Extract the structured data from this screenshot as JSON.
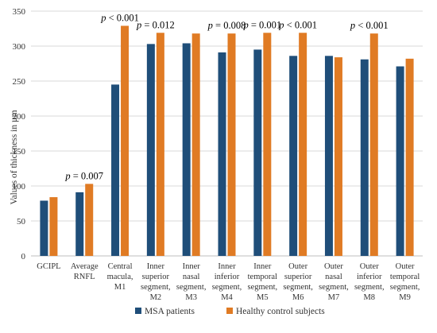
{
  "chart_data": {
    "type": "bar",
    "title": "",
    "xlabel": "",
    "ylabel": "Values of thickness in µm",
    "ylim": [
      0,
      350
    ],
    "yticks": [
      0,
      50,
      100,
      150,
      200,
      250,
      300,
      350
    ],
    "grid": true,
    "legend_position": "bottom",
    "categories": [
      [
        "GCIPL"
      ],
      [
        "Average",
        "RNFL"
      ],
      [
        "Central",
        "macula,",
        "M1"
      ],
      [
        "Inner",
        "superior",
        "segment,",
        "M2"
      ],
      [
        "Inner",
        "nasal",
        "segment,",
        "M3"
      ],
      [
        "Inner",
        "inferior",
        "segment,",
        "M4"
      ],
      [
        "Inner",
        "temporal",
        "segment,",
        "M5"
      ],
      [
        "Outer",
        "superior",
        "segment,",
        "M6"
      ],
      [
        "Outer",
        "nasal",
        "segment,",
        "M7"
      ],
      [
        "Outer",
        "inferior",
        "segment,",
        "M8"
      ],
      [
        "Outer",
        "temporal",
        "segment,",
        "M9"
      ]
    ],
    "series": [
      {
        "name": "MSA patients",
        "color": "#1f4e79",
        "values": [
          79,
          91,
          245,
          303,
          304,
          291,
          295,
          286,
          286,
          281,
          271
        ]
      },
      {
        "name": "Healthy control subjects",
        "color": "#e07b24",
        "values": [
          84,
          103,
          329,
          319,
          318,
          318,
          319,
          319,
          284,
          318,
          282
        ]
      }
    ],
    "annotations": [
      {
        "category_index": 1,
        "p": "p",
        "rest": " = 0.007"
      },
      {
        "category_index": 2,
        "p": "p",
        "rest": " < 0.001"
      },
      {
        "category_index": 3,
        "p": "p",
        "rest": " = 0.012"
      },
      {
        "category_index": 5,
        "p": "p",
        "rest": " = 0.008"
      },
      {
        "category_index": 6,
        "p": "p",
        "rest": " = 0.001"
      },
      {
        "category_index": 7,
        "p": "p",
        "rest": " < 0.001"
      },
      {
        "category_index": 9,
        "p": "p",
        "rest": " < 0.001"
      }
    ]
  }
}
